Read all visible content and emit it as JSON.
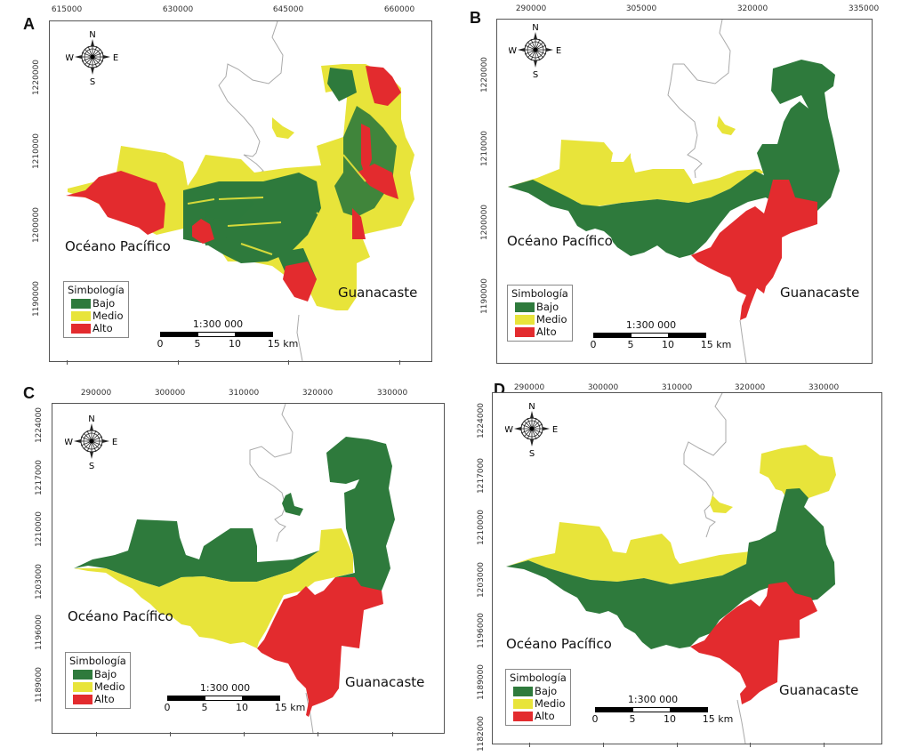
{
  "figure": {
    "colors": {
      "bajo": "#2e7a3c",
      "medio": "#e8e43a",
      "alto": "#e32b2e",
      "boundary": "#aaaaaa",
      "frame": "#555555"
    },
    "legend": {
      "title": "Simbología",
      "items": [
        {
          "label": "Bajo",
          "color": "#2e7a3c"
        },
        {
          "label": "Medio",
          "color": "#e8e43a"
        },
        {
          "label": "Alto",
          "color": "#e32b2e"
        }
      ]
    },
    "scale": {
      "ratio": "1:300 000",
      "labels": [
        "0",
        "5",
        "10",
        "15 km"
      ]
    },
    "compass": {
      "n": "N",
      "s": "S",
      "e": "E",
      "w": "W"
    },
    "place_labels": {
      "ocean": "Océano Pacífico",
      "province": "Guanacaste"
    }
  },
  "panels": [
    {
      "letter": "A",
      "x_ticks": [
        "615000",
        "630000",
        "645000",
        "660000"
      ],
      "y_ticks": [
        "1220000",
        "1210000",
        "1200000",
        "1190000"
      ],
      "classification": "mixed raster: Bajo, Medio and Alto patches"
    },
    {
      "letter": "B",
      "x_ticks": [
        "290000",
        "305000",
        "320000",
        "335000"
      ],
      "y_ticks": [
        "1220000",
        "1210000",
        "1200000",
        "1190000"
      ],
      "classification": {
        "west_north": "Medio",
        "central_east": "Bajo",
        "south_east": "Alto"
      }
    },
    {
      "letter": "C",
      "x_ticks": [
        "290000",
        "300000",
        "310000",
        "320000",
        "330000"
      ],
      "y_ticks": [
        "1224000",
        "1217000",
        "1210000",
        "1203000",
        "1196000",
        "1189000"
      ],
      "classification": {
        "west_north": "Bajo",
        "central": "Medio",
        "south_east": "Alto",
        "north_east": "Bajo"
      }
    },
    {
      "letter": "D",
      "x_ticks": [
        "290000",
        "300000",
        "310000",
        "320000",
        "330000"
      ],
      "y_ticks": [
        "1224000",
        "1217000",
        "1210000",
        "1203000",
        "1196000",
        "1189000",
        "1182000"
      ],
      "classification": {
        "west_north": "Medio",
        "central_east": "Bajo",
        "south_east": "Alto",
        "north_east": "Medio"
      }
    }
  ]
}
